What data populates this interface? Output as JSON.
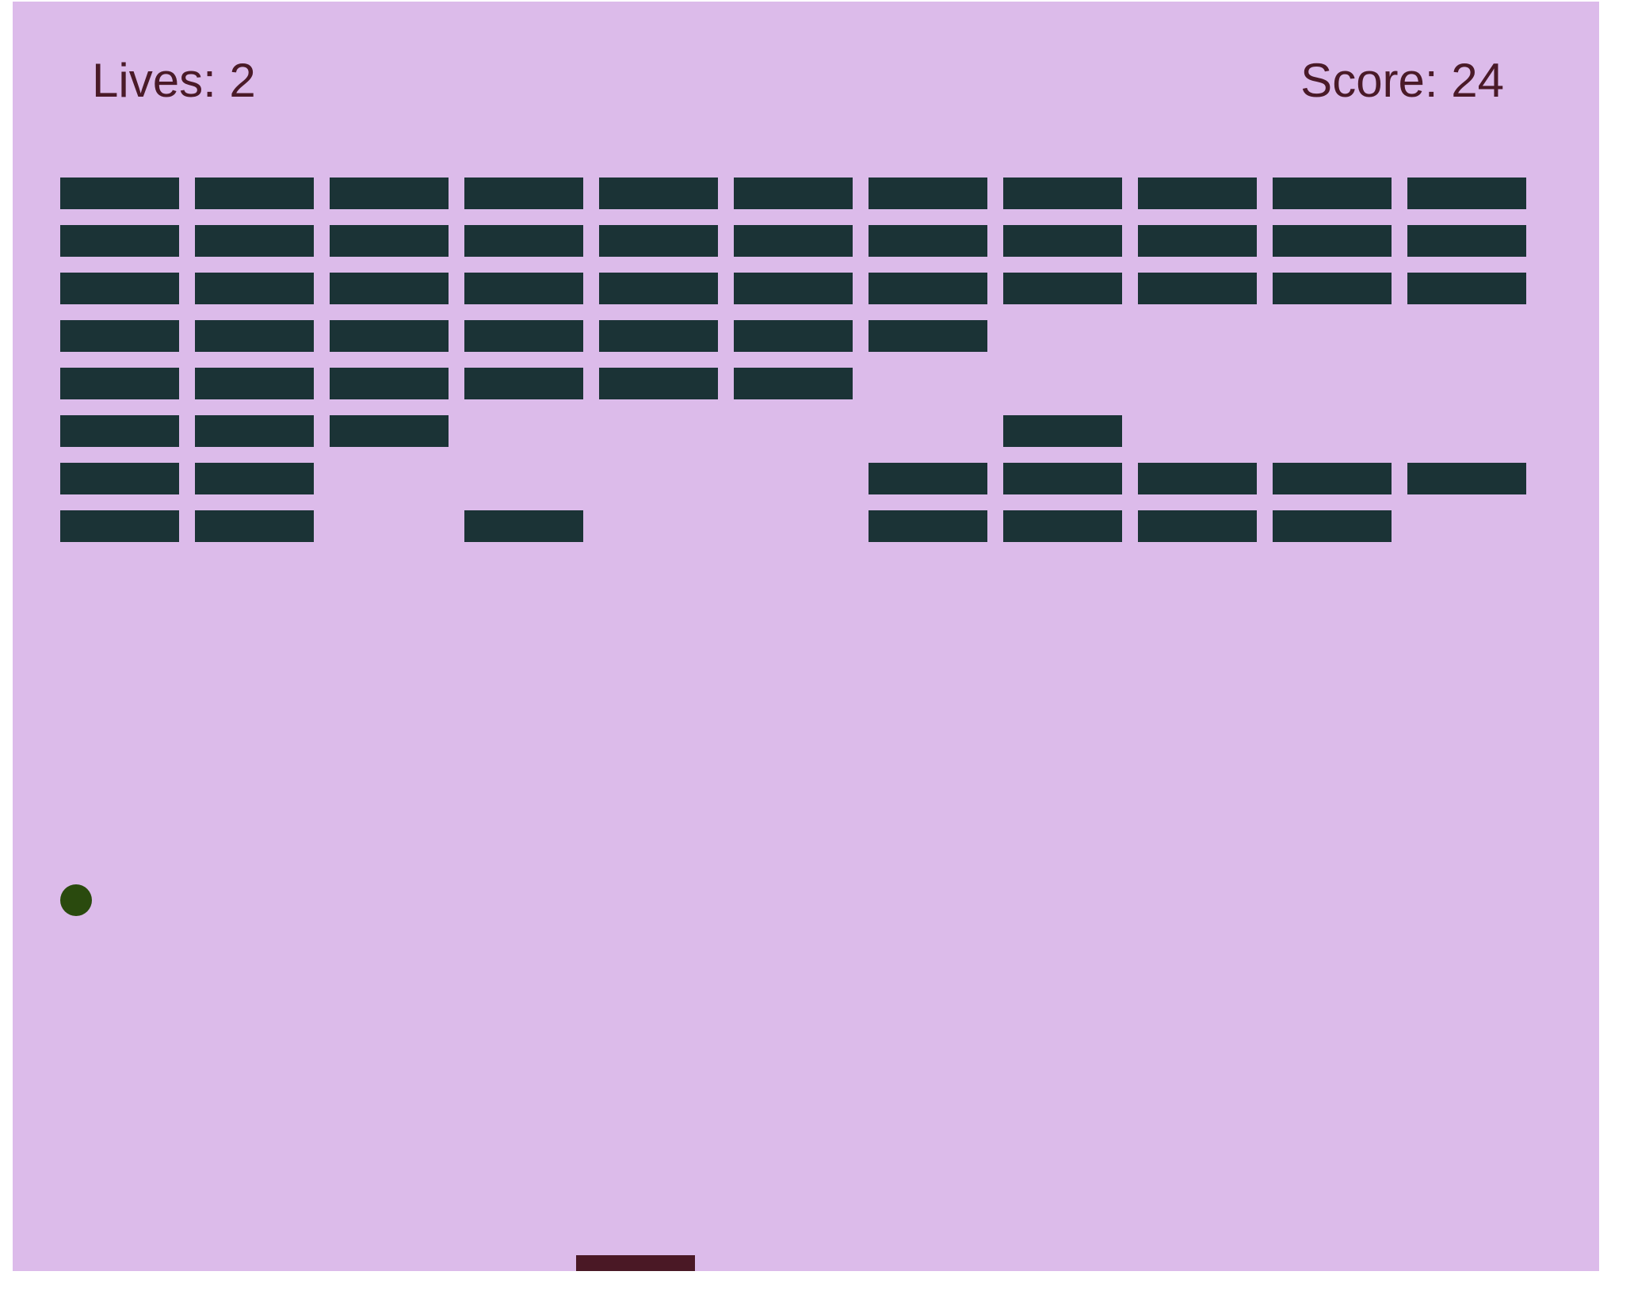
{
  "hud": {
    "lives_text": "Lives: 2",
    "score_text": "Score: 24"
  },
  "colors": {
    "background": "#dcbbea",
    "brick": "#1b3336",
    "ball": "#2a4a0e",
    "paddle": "#4a1825",
    "text": "#4a1a28"
  },
  "bricks": {
    "columns": 11,
    "rows": [
      [
        1,
        1,
        1,
        1,
        1,
        1,
        1,
        1,
        1,
        1,
        1
      ],
      [
        1,
        1,
        1,
        1,
        1,
        1,
        1,
        1,
        1,
        1,
        1
      ],
      [
        1,
        1,
        1,
        1,
        1,
        1,
        1,
        1,
        1,
        1,
        1
      ],
      [
        1,
        1,
        1,
        1,
        1,
        1,
        1,
        0,
        0,
        0,
        0
      ],
      [
        1,
        1,
        1,
        1,
        1,
        1,
        0,
        0,
        0,
        0,
        0
      ],
      [
        1,
        1,
        1,
        0,
        0,
        0,
        0,
        1,
        0,
        0,
        0
      ],
      [
        1,
        1,
        0,
        0,
        0,
        0,
        1,
        1,
        1,
        1,
        1
      ],
      [
        1,
        1,
        0,
        1,
        0,
        0,
        1,
        1,
        1,
        1,
        0
      ]
    ]
  }
}
